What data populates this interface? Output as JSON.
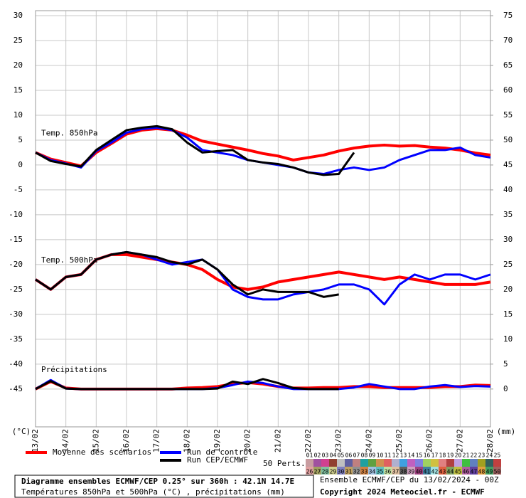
{
  "chart_data": {
    "type": "line",
    "x_unit_label": "(°C)",
    "y2_unit_label": "(mm)",
    "xlim": [
      0,
      360
    ],
    "xticks": [
      {
        "value": 0,
        "label": "13/02"
      },
      {
        "value": 24,
        "label": "14/02"
      },
      {
        "value": 48,
        "label": "15/02"
      },
      {
        "value": 72,
        "label": "16/02"
      },
      {
        "value": 96,
        "label": "17/02"
      },
      {
        "value": 120,
        "label": "18/02"
      },
      {
        "value": 144,
        "label": "19/02"
      },
      {
        "value": 168,
        "label": "20/02"
      },
      {
        "value": 192,
        "label": "21/02"
      },
      {
        "value": 216,
        "label": "22/02"
      },
      {
        "value": 240,
        "label": "23/02"
      },
      {
        "value": 264,
        "label": "24/02"
      },
      {
        "value": 288,
        "label": "25/02"
      },
      {
        "value": 312,
        "label": "26/02"
      },
      {
        "value": 336,
        "label": "27/02"
      },
      {
        "value": 360,
        "label": "28/02"
      }
    ],
    "x": [
      0,
      12,
      24,
      36,
      48,
      60,
      72,
      84,
      96,
      108,
      120,
      132,
      144,
      156,
      168,
      180,
      192,
      204,
      216,
      228,
      240,
      252,
      264,
      276,
      288,
      300,
      312,
      324,
      336,
      348,
      360
    ],
    "ylim": [
      -52.6,
      31
    ],
    "yticks": [
      30,
      25,
      20,
      15,
      10,
      5,
      0,
      -5,
      -10,
      -15,
      -20,
      -25,
      -30,
      -35,
      -40,
      -45
    ],
    "y2lim": [
      -7.6,
      76
    ],
    "y2ticks": [
      75,
      70,
      65,
      60,
      55,
      50,
      45,
      40,
      35,
      30,
      25,
      20,
      15,
      10,
      5,
      0
    ],
    "grid": true,
    "panels": [
      {
        "label": "Temp. 850hPa",
        "series": [
          {
            "name": "Moyenne des scénarios",
            "color": "#ff0000",
            "values": [
              2.5,
              1.2,
              0.5,
              -0.2,
              2.5,
              4.3,
              6.2,
              7.0,
              7.3,
              7.0,
              6.0,
              4.8,
              4.2,
              3.6,
              3.0,
              2.3,
              1.8,
              1.0,
              1.5,
              2.0,
              2.8,
              3.4,
              3.8,
              4.0,
              3.8,
              3.9,
              3.6,
              3.4,
              3.0,
              2.4,
              2.0
            ]
          },
          {
            "name": "Run de contrôle",
            "color": "#0000ff",
            "values": [
              2.5,
              1.0,
              0.3,
              -0.5,
              2.8,
              4.5,
              6.5,
              7.2,
              7.5,
              7.0,
              5.5,
              3.0,
              2.5,
              2.0,
              1.0,
              0.5,
              0.0,
              -0.5,
              -1.5,
              -1.8,
              -1.0,
              -0.5,
              -1.0,
              -0.5,
              1.0,
              2.0,
              3.0,
              3.0,
              3.5,
              2.0,
              1.5
            ]
          },
          {
            "name": "Run CEP/ECMWF",
            "color": "#000000",
            "values": [
              2.5,
              0.8,
              0.2,
              -0.3,
              3.0,
              5.0,
              7.0,
              7.5,
              7.8,
              7.2,
              4.5,
              2.5,
              2.8,
              3.0,
              1.0,
              0.5,
              0.2,
              -0.5,
              -1.5,
              -2.0,
              -1.8,
              2.5,
              null,
              null,
              null,
              null,
              null,
              null,
              null,
              null,
              null
            ]
          }
        ]
      },
      {
        "label": "Temp. 500hPa",
        "series": [
          {
            "name": "Moyenne des scénarios",
            "color": "#ff0000",
            "values": [
              -23,
              -25,
              -22.5,
              -22,
              -19,
              -18,
              -18,
              -18.5,
              -19,
              -19.5,
              -20,
              -21,
              -23,
              -24.5,
              -25,
              -24.5,
              -23.5,
              -23,
              -22.5,
              -22,
              -21.5,
              -22,
              -22.5,
              -23,
              -22.5,
              -23,
              -23.5,
              -24,
              -24,
              -24,
              -23.5
            ]
          },
          {
            "name": "Run de contrôle",
            "color": "#0000ff",
            "values": [
              -23,
              -25,
              -22.5,
              -22,
              -19,
              -18,
              -17.5,
              -18,
              -19,
              -20,
              -19.5,
              -19,
              -21,
              -25,
              -26.5,
              -27,
              -27,
              -26,
              -25.5,
              -25,
              -24,
              -24,
              -25,
              -28,
              -24,
              -22,
              -23,
              -22,
              -22,
              -23,
              -22
            ]
          },
          {
            "name": "Run CEP/ECMWF",
            "color": "#000000",
            "values": [
              -23,
              -25,
              -22.5,
              -22,
              -19,
              -18,
              -17.5,
              -18,
              -18.5,
              -19.5,
              -20,
              -19,
              -21,
              -24,
              -26,
              -25,
              -25.5,
              -25.5,
              -25.5,
              -26.5,
              -26,
              null,
              null,
              null,
              null,
              null,
              null,
              null,
              null,
              null,
              null
            ]
          }
        ]
      },
      {
        "label": "Précipitations",
        "series": [
          {
            "name": "Moyenne des scénarios",
            "color": "#ff0000",
            "axis": "y2",
            "values": [
              0,
              1.5,
              0.2,
              0,
              0,
              0,
              0,
              0,
              0,
              0,
              0.2,
              0.3,
              0.5,
              1,
              1.3,
              1,
              0.5,
              0.2,
              0.2,
              0.3,
              0.3,
              0.5,
              0.5,
              0.3,
              0.3,
              0.3,
              0.3,
              0.5,
              0.5,
              0.8,
              0.7
            ]
          },
          {
            "name": "Run de contrôle",
            "color": "#0000ff",
            "axis": "y2",
            "values": [
              0,
              1.8,
              0.1,
              0,
              0,
              0,
              0,
              0,
              0,
              0,
              0,
              0,
              0.2,
              0.8,
              1.5,
              1.2,
              0.5,
              0,
              0,
              0,
              0,
              0.3,
              1,
              0.5,
              0,
              0,
              0.5,
              0.8,
              0.4,
              0.6,
              0.5
            ]
          },
          {
            "name": "Run CEP/ECMWF",
            "color": "#000000",
            "axis": "y2",
            "values": [
              0,
              1.6,
              0.1,
              0,
              0,
              0,
              0,
              0,
              0,
              0,
              0,
              0,
              0.1,
              1.5,
              1.0,
              2.0,
              1.2,
              0.2,
              0,
              0,
              0,
              null,
              null,
              null,
              null,
              null,
              null,
              null,
              null,
              null,
              null
            ]
          }
        ]
      }
    ],
    "members_title": "50 Perts.",
    "members": [
      "01",
      "02",
      "03",
      "04",
      "05",
      "06",
      "07",
      "08",
      "09",
      "10",
      "11",
      "12",
      "13",
      "14",
      "15",
      "16",
      "17",
      "18",
      "19",
      "20",
      "21",
      "22",
      "23",
      "24",
      "25",
      "26",
      "27",
      "28",
      "29",
      "30",
      "31",
      "32",
      "33",
      "34",
      "35",
      "36",
      "37",
      "38",
      "39",
      "40",
      "41",
      "42",
      "43",
      "44",
      "45",
      "46",
      "47",
      "48",
      "49",
      "50"
    ],
    "member_colors": [
      "#c89ca0",
      "#a050a0",
      "#d04090",
      "#904030",
      "#c0c0c0",
      "#6060a0",
      "#c08080",
      "#20a0a0",
      "#60a040",
      "#d09050",
      "#e06060",
      "#b0b0d0",
      "#40a0e0",
      "#c060c0",
      "#8080e0",
      "#a0d060",
      "#d0c040",
      "#e08080",
      "#b04040",
      "#c0a0e0",
      "#40c040",
      "#6080c0",
      "#a0a020",
      "#306060",
      "#c04040",
      "#e0a0a0",
      "#a0a060",
      "#80c0a0",
      "#d0d090",
      "#8080c0",
      "#c0a060",
      "#909090",
      "#d08040",
      "#a0c0e0",
      "#60c0c0",
      "#c0e0a0",
      "#e0c0a0",
      "#606060",
      "#d0a0c0",
      "#a04080",
      "#4080a0",
      "#a0e0e0",
      "#e06040",
      "#80a060",
      "#c0c040",
      "#b060a0",
      "#6040a0",
      "#e0a040",
      "#40a060",
      "#a06060"
    ],
    "info_left": [
      "Diagramme ensembles ECMWF/CEP 0.25° sur 360h : 42.1N 14.7E",
      "Températures 850hPa et 500hPa (°C) , précipitations (mm)"
    ],
    "info_right": [
      "Ensemble ECMWF/CEP du 13/02/2024 - 00Z",
      "Copyright 2024 Meteociel.fr - ECMWF"
    ]
  }
}
